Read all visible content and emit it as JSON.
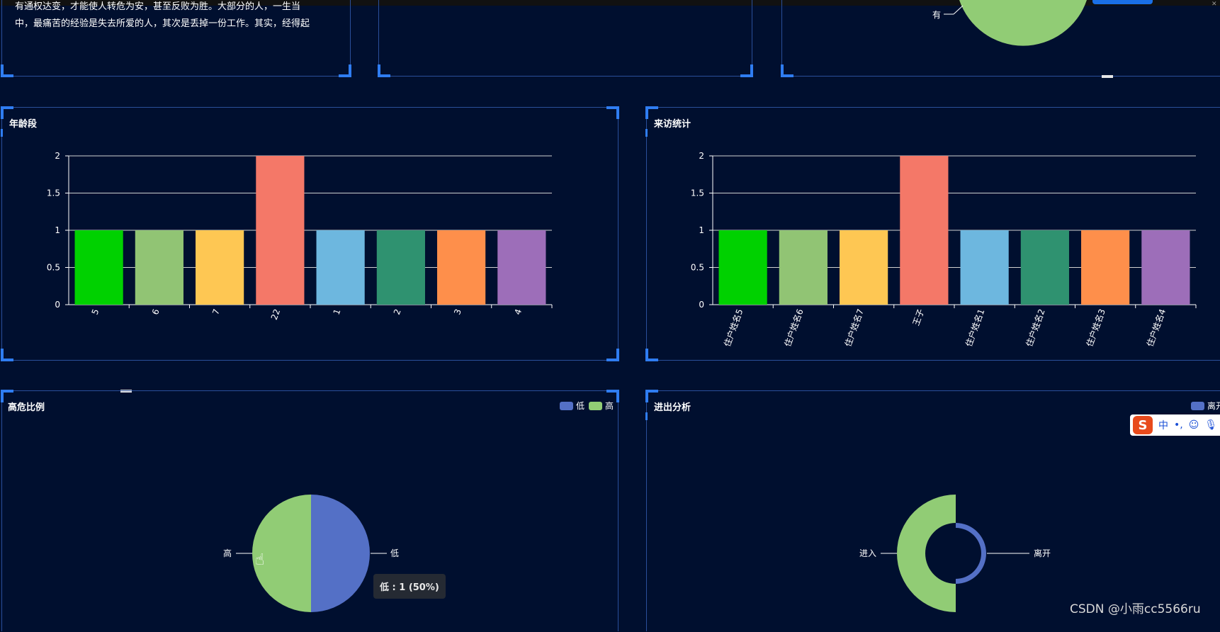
{
  "intro": {
    "lines": [
      "有通权达变，才能使人转危为安，甚至反败为胜。大部分的人，一生当",
      "中，最痛苦的经验是失去所爱的人，其次是丢掉一份工作。其实，经得起"
    ]
  },
  "top_right_pie": {
    "label": "有",
    "color": "#91cc75"
  },
  "age_panel": {
    "title": "年龄段",
    "chart_data": {
      "type": "bar",
      "categories": [
        "5",
        "6",
        "7",
        "22",
        "1",
        "2",
        "3",
        "4"
      ],
      "values": [
        1,
        1,
        1,
        2,
        1,
        1,
        1,
        1
      ],
      "colors": [
        "#00d100",
        "#91c474",
        "#fec753",
        "#f47868",
        "#6db7df",
        "#2f9270",
        "#fe8f4b",
        "#9d6eb9"
      ],
      "ylim": [
        0,
        2
      ],
      "yticks": [
        "0",
        "0.5",
        "1",
        "1.5",
        "2"
      ]
    }
  },
  "visit_panel": {
    "title": "来访统计",
    "chart_data": {
      "type": "bar",
      "categories": [
        "住户姓名5",
        "住户姓名6",
        "住户姓名7",
        "王子",
        "住户姓名1",
        "住户姓名2",
        "住户姓名3",
        "住户姓名4"
      ],
      "values": [
        1,
        1,
        1,
        2,
        1,
        1,
        1,
        1
      ],
      "colors": [
        "#00d100",
        "#91c474",
        "#fec753",
        "#f47868",
        "#6db7df",
        "#2f9270",
        "#fe8f4b",
        "#9d6eb9"
      ],
      "ylim": [
        0,
        2
      ],
      "yticks": [
        "0",
        "0.5",
        "1",
        "1.5",
        "2"
      ]
    }
  },
  "risk_panel": {
    "title": "高危比例",
    "legend": [
      {
        "label": "低",
        "color": "#5470c6"
      },
      {
        "label": "高",
        "color": "#91cc75"
      }
    ],
    "chart_data": {
      "type": "pie",
      "slices": [
        {
          "label": "低",
          "value": 1,
          "color": "#5470c6"
        },
        {
          "label": "高",
          "value": 1,
          "color": "#91cc75"
        }
      ]
    },
    "tooltip": "低 : 1 (50%)"
  },
  "inout_panel": {
    "title": "进出分析",
    "legend": [
      {
        "label": "离开",
        "color": "#5470c6"
      }
    ],
    "chart_data": {
      "type": "pie",
      "variant": "rose",
      "slices": [
        {
          "label": "离开",
          "color": "#5470c6"
        },
        {
          "label": "进入",
          "color": "#91cc75"
        }
      ]
    }
  },
  "ime": {
    "mode": "中",
    "punct": "•,",
    "emoji_icon": "smile-icon",
    "mic_icon": "mic-icon"
  },
  "watermark": "CSDN @小雨cc5566ru"
}
